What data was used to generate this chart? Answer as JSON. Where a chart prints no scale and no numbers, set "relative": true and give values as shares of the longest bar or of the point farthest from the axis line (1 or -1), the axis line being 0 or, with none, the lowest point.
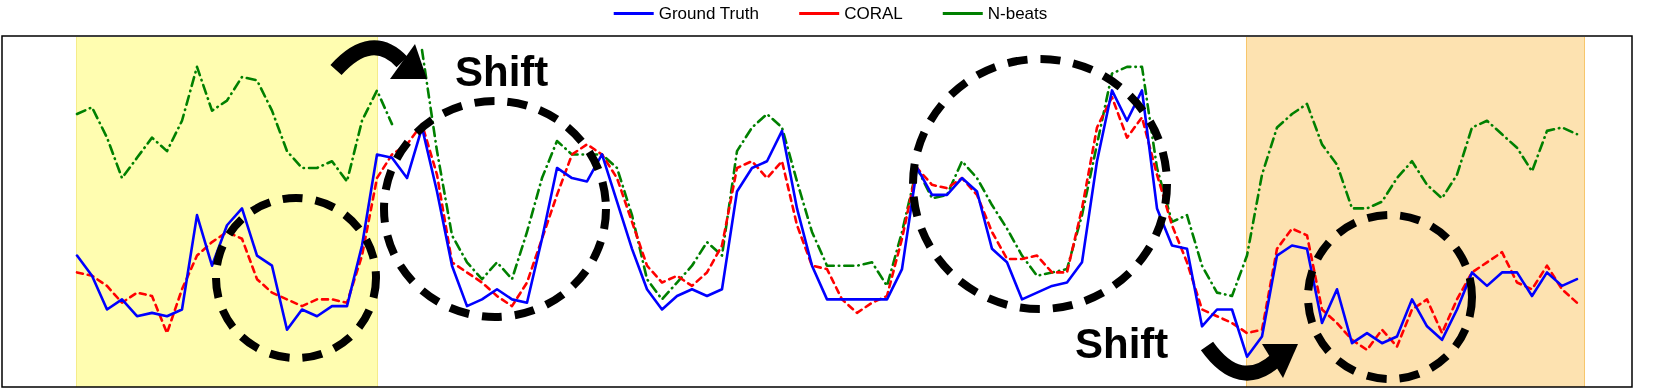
{
  "chart_data": {
    "type": "line",
    "relative": true,
    "legend": "top",
    "marker": "none",
    "categories": [
      null,
      null,
      null,
      null,
      null,
      null,
      null,
      null,
      null,
      null,
      null,
      null,
      null,
      null,
      null,
      null,
      null,
      null,
      null,
      null,
      null,
      null,
      null,
      null,
      null,
      null,
      null,
      null,
      null,
      null,
      null,
      null,
      null,
      null,
      null,
      null,
      null,
      null,
      null,
      null,
      null,
      null,
      null,
      null,
      null,
      null,
      null,
      null,
      null,
      null,
      null,
      null,
      null,
      null,
      null,
      null,
      null,
      null,
      null,
      null,
      null,
      null,
      null,
      null,
      null,
      null,
      null,
      null,
      null,
      null,
      null,
      null,
      null,
      null,
      null,
      null,
      null,
      null,
      null,
      null,
      null,
      null,
      null,
      null,
      null,
      null,
      null,
      null,
      null,
      null,
      null,
      null,
      null,
      null,
      null,
      null,
      null,
      null,
      null,
      null,
      null
    ],
    "series": [
      {
        "name": "Ground Truth",
        "color": "#0000ff",
        "line_style": "solid",
        "values": [
          0.39,
          0.33,
          0.23,
          0.26,
          0.21,
          0.22,
          0.21,
          0.23,
          0.51,
          0.36,
          0.48,
          0.53,
          0.39,
          0.36,
          0.17,
          0.23,
          0.21,
          0.24,
          0.24,
          0.42,
          0.69,
          0.68,
          0.62,
          0.77,
          0.58,
          0.36,
          0.24,
          0.26,
          0.29,
          0.26,
          0.25,
          0.44,
          0.65,
          0.62,
          0.61,
          0.69,
          0.55,
          0.41,
          0.29,
          0.23,
          0.27,
          0.29,
          0.27,
          0.29,
          0.58,
          0.65,
          0.67,
          0.76,
          0.53,
          0.36,
          0.26,
          0.26,
          0.26,
          0.26,
          0.26,
          0.35,
          0.65,
          0.57,
          0.57,
          0.62,
          0.58,
          0.41,
          0.37,
          0.26,
          0.28,
          0.3,
          0.31,
          0.37,
          0.67,
          0.88,
          0.79,
          0.88,
          0.53,
          0.42,
          0.41,
          0.18,
          0.23,
          0.23,
          0.09,
          0.15,
          0.39,
          0.42,
          0.41,
          0.19,
          0.29,
          0.13,
          0.16,
          0.13,
          0.15,
          0.26,
          0.18,
          0.14,
          0.23,
          0.34,
          0.3,
          0.34,
          0.34,
          0.27,
          0.34,
          0.3,
          0.32
        ]
      },
      {
        "name": "CORAL",
        "color": "#ff0000",
        "line_style": "dashed",
        "values": [
          0.34,
          0.33,
          0.3,
          0.25,
          0.28,
          0.27,
          0.16,
          0.29,
          0.39,
          0.43,
          0.46,
          0.44,
          0.32,
          0.28,
          0.26,
          0.24,
          0.26,
          0.26,
          0.25,
          0.39,
          0.62,
          0.69,
          0.72,
          0.78,
          0.63,
          0.37,
          0.34,
          0.31,
          0.27,
          0.24,
          0.31,
          0.44,
          0.57,
          0.69,
          0.72,
          0.69,
          0.62,
          0.49,
          0.36,
          0.31,
          0.33,
          0.3,
          0.34,
          0.42,
          0.65,
          0.67,
          0.62,
          0.67,
          0.48,
          0.36,
          0.35,
          0.26,
          0.22,
          0.25,
          0.27,
          0.44,
          0.65,
          0.6,
          0.59,
          0.62,
          0.57,
          0.46,
          0.38,
          0.38,
          0.39,
          0.34,
          0.34,
          0.53,
          0.77,
          0.86,
          0.74,
          0.8,
          0.63,
          0.48,
          0.37,
          0.23,
          0.21,
          0.19,
          0.16,
          0.17,
          0.41,
          0.47,
          0.45,
          0.23,
          0.19,
          0.14,
          0.11,
          0.17,
          0.12,
          0.23,
          0.26,
          0.16,
          0.26,
          0.34,
          0.37,
          0.4,
          0.31,
          0.29,
          0.36,
          0.29,
          0.25
        ]
      },
      {
        "name": "N-beats",
        "color": "#008000",
        "line_style": "dashdot",
        "values": [
          0.81,
          0.83,
          0.74,
          0.62,
          0.68,
          0.74,
          0.7,
          0.79,
          0.95,
          0.82,
          0.85,
          0.92,
          0.91,
          0.82,
          0.7,
          0.65,
          0.65,
          0.67,
          0.61,
          0.79,
          0.88,
          0.78,
          null,
          1,
          0.7,
          0.45,
          0.37,
          0.32,
          0.37,
          0.32,
          0.46,
          0.62,
          0.73,
          0.69,
          0.69,
          0.69,
          0.65,
          0.51,
          0.32,
          0.26,
          0.31,
          0.36,
          0.43,
          0.39,
          0.7,
          0.77,
          0.81,
          0.77,
          0.61,
          0.46,
          0.36,
          0.36,
          0.36,
          0.37,
          0.3,
          0.46,
          0.65,
          0.56,
          0.57,
          0.67,
          0.62,
          0.54,
          0.47,
          0.39,
          0.33,
          0.34,
          0.35,
          0.51,
          0.72,
          0.93,
          0.95,
          0.95,
          0.65,
          0.49,
          0.51,
          0.36,
          0.28,
          0.27,
          0.39,
          0.63,
          0.77,
          0.81,
          0.84,
          0.72,
          0.66,
          0.53,
          0.53,
          0.55,
          0.62,
          0.67,
          0.6,
          0.56,
          0.63,
          0.77,
          0.79,
          0.75,
          0.71,
          0.64,
          0.76,
          0.77,
          0.75
        ]
      }
    ],
    "annotations": [
      "Shift",
      "Shift"
    ]
  }
}
